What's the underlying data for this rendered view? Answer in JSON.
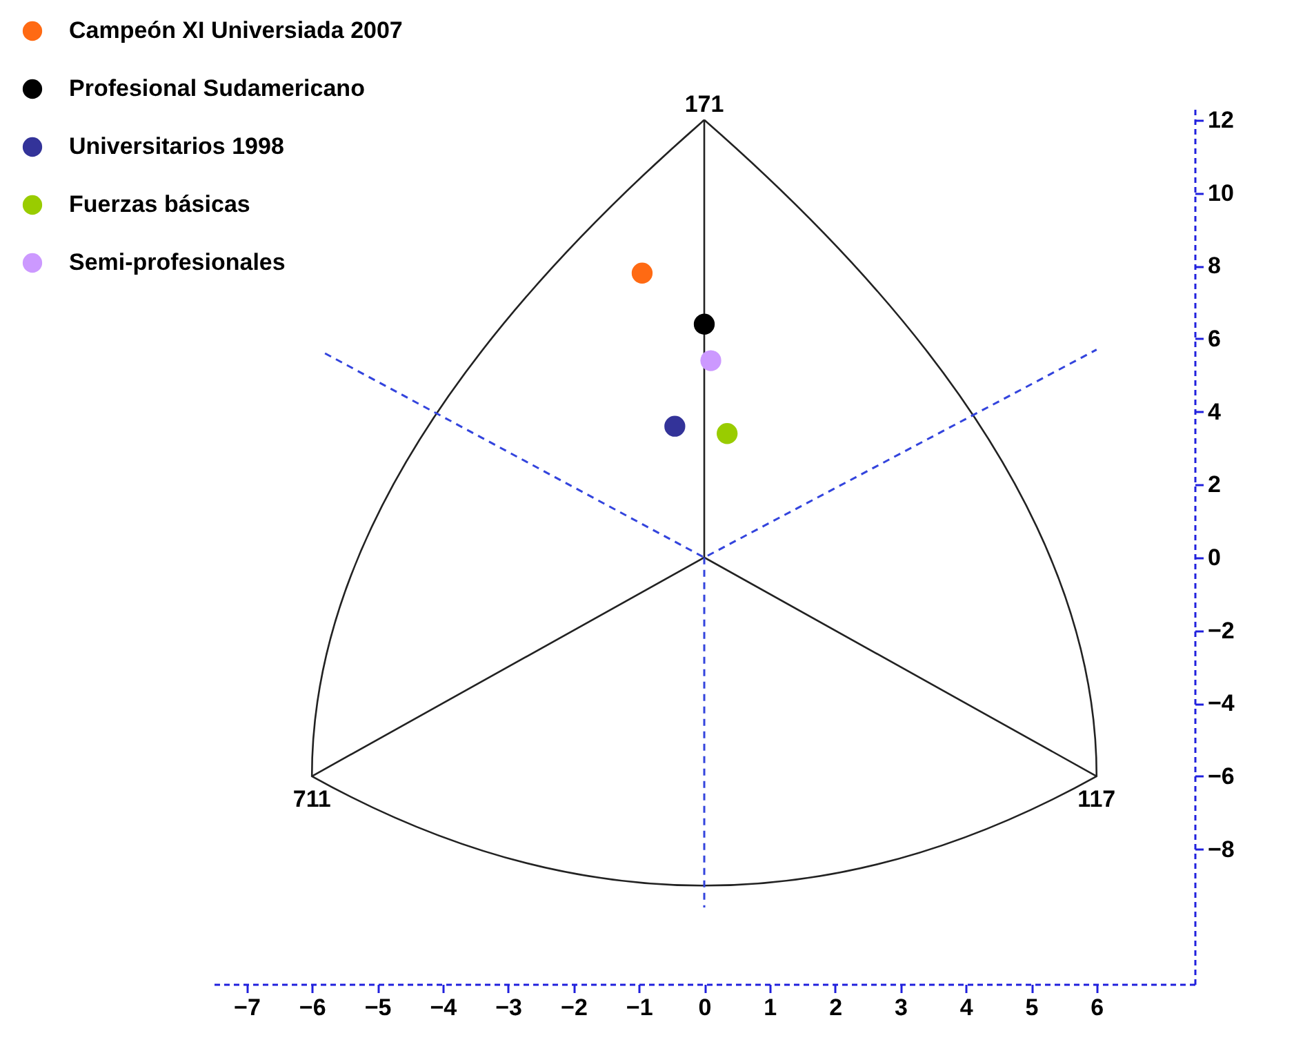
{
  "chart_data": {
    "type": "scatter",
    "series": [
      {
        "name": "Campeón XI Universiada 2007",
        "color": "#ff6a13",
        "x": [
          -0.95
        ],
        "values": [
          7.8
        ]
      },
      {
        "name": "Profesional Sudamericano",
        "color": "#000000",
        "x": [
          0
        ],
        "values": [
          6.4
        ]
      },
      {
        "name": "Universitarios 1998",
        "color": "#333399",
        "x": [
          -0.45
        ],
        "values": [
          3.6
        ]
      },
      {
        "name": "Fuerzas básicas",
        "color": "#99cc00",
        "x": [
          0.35
        ],
        "values": [
          3.4
        ]
      },
      {
        "name": "Semi-profesionales",
        "color": "#cc99ff",
        "x": [
          0.1
        ],
        "values": [
          5.4
        ]
      },
      {
        "type": "line",
        "color": "#3344dd",
        "line_style": "dashed",
        "marker": "none",
        "x": [
          -5.8,
          0,
          6
        ],
        "values": [
          5.6,
          0,
          5.7
        ]
      },
      {
        "type": "line",
        "color": "#3344dd",
        "line_style": "dashed",
        "marker": "none",
        "x": [
          0,
          0
        ],
        "values": [
          0,
          -9.6
        ]
      }
    ],
    "annotations": [
      "171",
      "711",
      "117"
    ],
    "xlim": [
      -7.5,
      7.5
    ],
    "xticks": [
      -7,
      -6,
      -5,
      -4,
      -3,
      -2,
      -1,
      0,
      1,
      2,
      3,
      4,
      5,
      6
    ],
    "ylim": [
      -11.7,
      12.3
    ],
    "yticks": [
      -8,
      -6,
      -4,
      -2,
      0,
      2,
      4,
      6,
      8,
      10,
      12
    ],
    "legend": "top left",
    "marker": "circle",
    "grid": false
  }
}
